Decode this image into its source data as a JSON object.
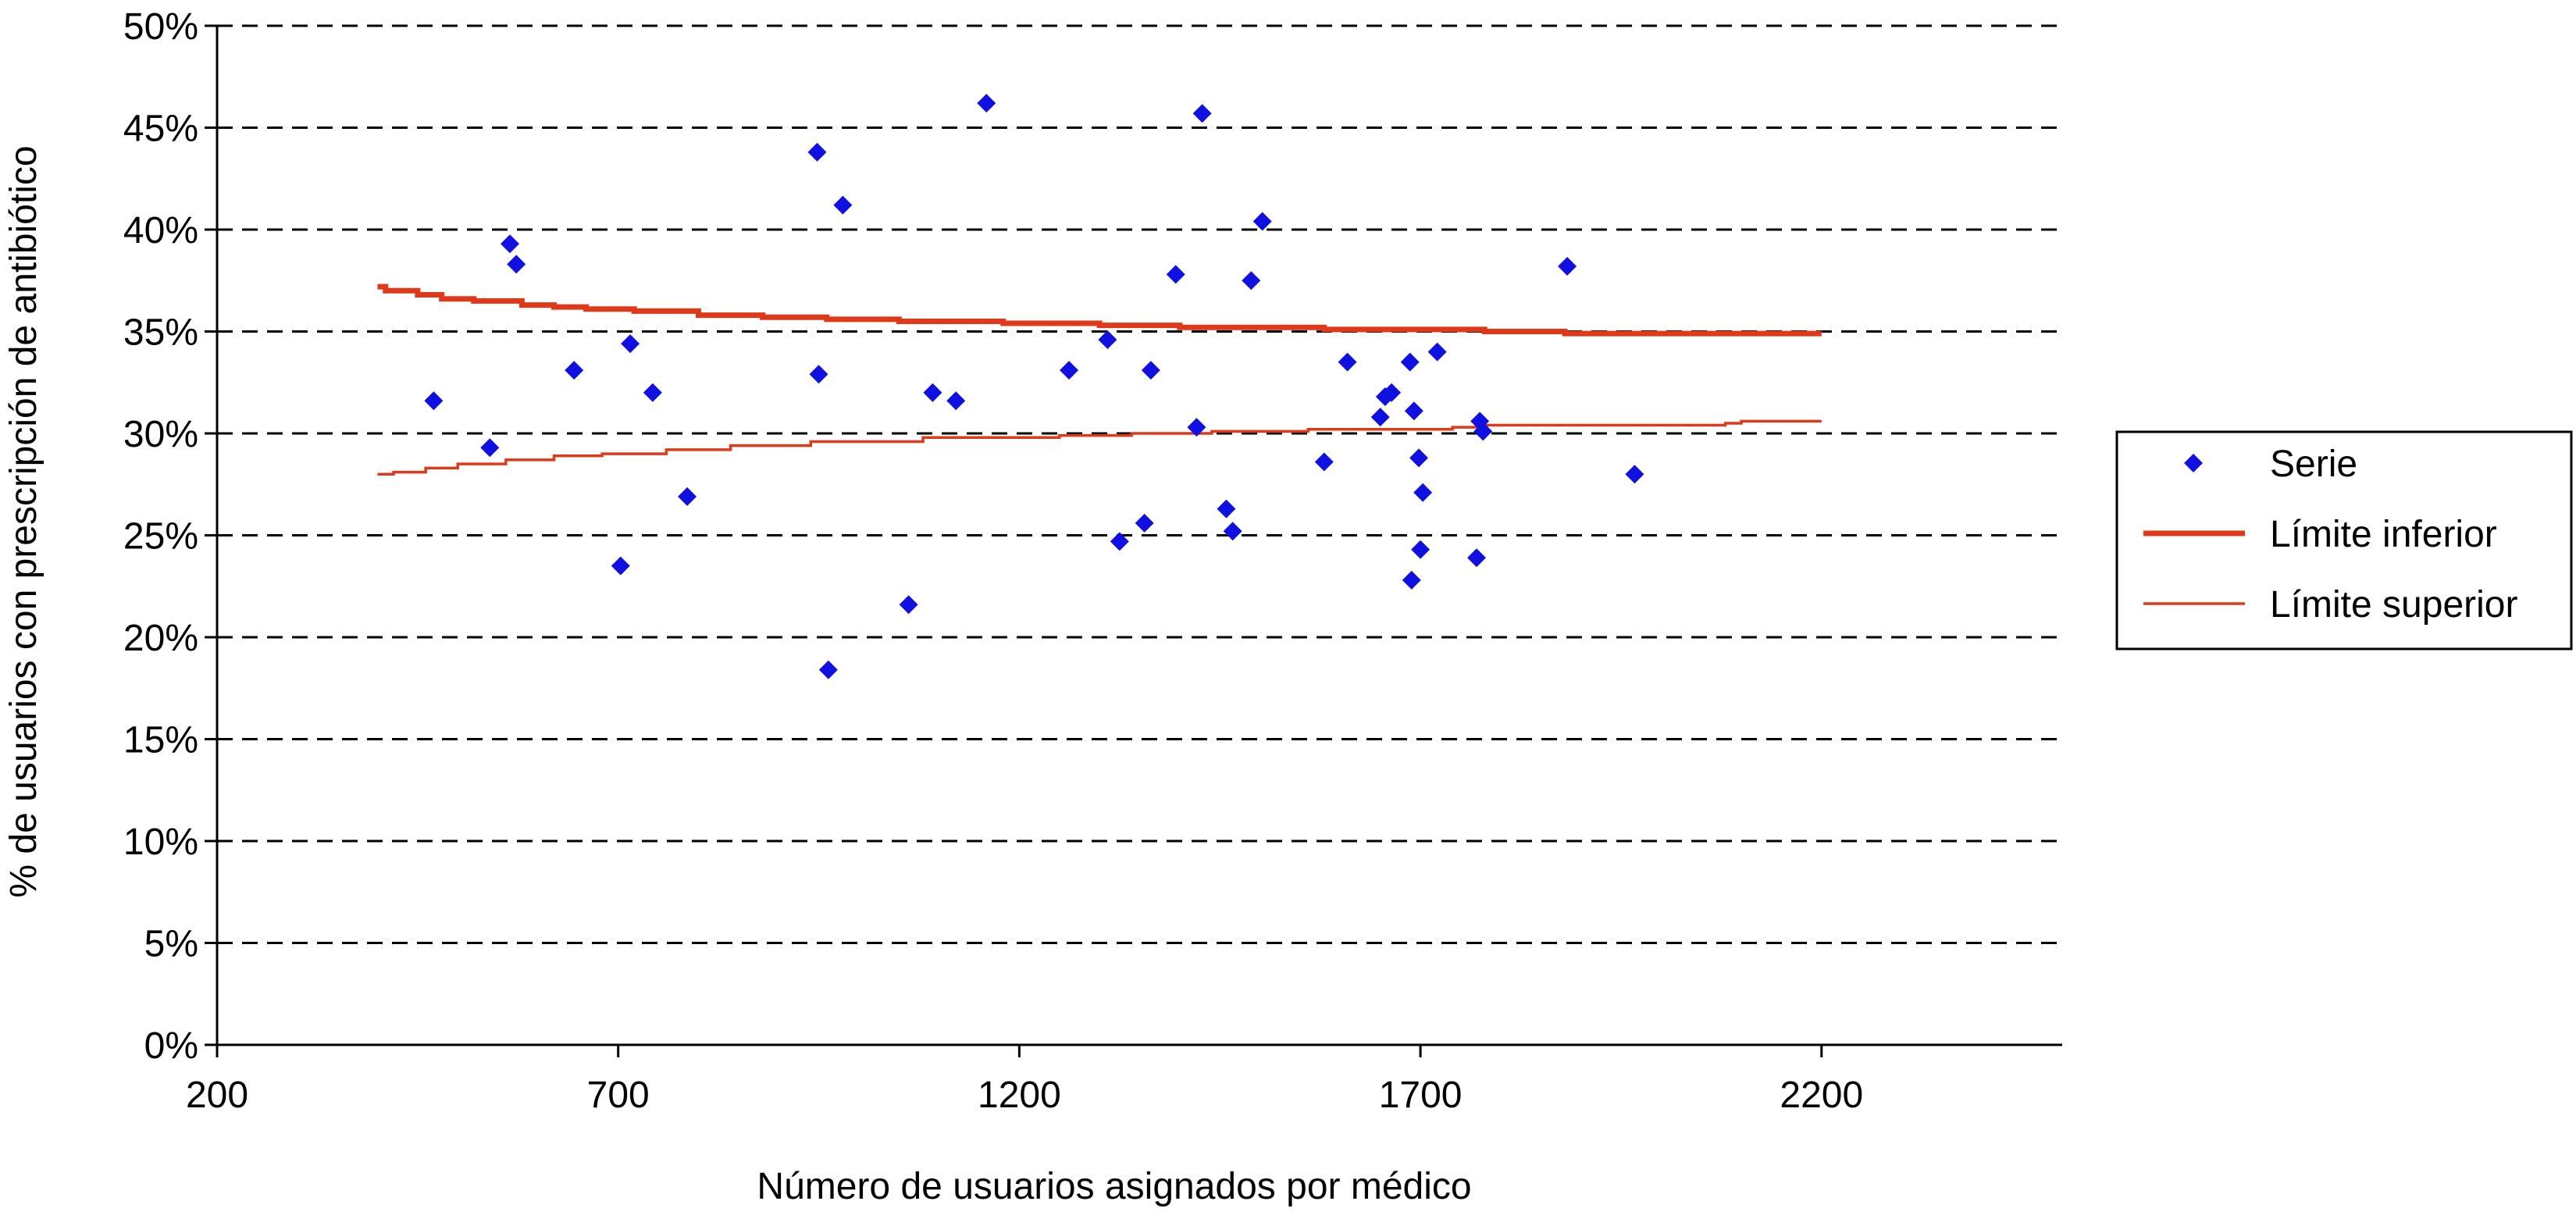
{
  "chart_data": {
    "type": "scatter",
    "title": "",
    "xlabel": "Número de usuarios asignados por médico",
    "ylabel": "% de usuarios con prescripción de antibiótico",
    "xlim": [
      200,
      2500
    ],
    "ylim": [
      0,
      0.5
    ],
    "x_ticks": [
      200,
      700,
      1200,
      1700,
      2200
    ],
    "x_tick_labels": [
      "200",
      "700",
      "1200",
      "1700",
      "2200"
    ],
    "y_ticks": [
      0,
      0.05,
      0.1,
      0.15,
      0.2,
      0.25,
      0.3,
      0.35,
      0.4,
      0.45,
      0.5
    ],
    "y_tick_labels": [
      "0%",
      "5%",
      "10%",
      "15%",
      "20%",
      "25%",
      "30%",
      "35%",
      "40%",
      "45%",
      "50%"
    ],
    "grid": "horizontal dashed",
    "legend_position": "right",
    "series": [
      {
        "name": "Serie",
        "kind": "points",
        "marker": "diamond",
        "color": "#1010e0",
        "points": [
          [
            470,
            0.316
          ],
          [
            540,
            0.293
          ],
          [
            565,
            0.393
          ],
          [
            573,
            0.383
          ],
          [
            645,
            0.331
          ],
          [
            703,
            0.235
          ],
          [
            715,
            0.344
          ],
          [
            743,
            0.32
          ],
          [
            786,
            0.269
          ],
          [
            948,
            0.438
          ],
          [
            950,
            0.329
          ],
          [
            962,
            0.184
          ],
          [
            980,
            0.412
          ],
          [
            1062,
            0.216
          ],
          [
            1092,
            0.32
          ],
          [
            1121,
            0.316
          ],
          [
            1159,
            0.462
          ],
          [
            1262,
            0.331
          ],
          [
            1310,
            0.346
          ],
          [
            1325,
            0.247
          ],
          [
            1356,
            0.256
          ],
          [
            1364,
            0.331
          ],
          [
            1395,
            0.378
          ],
          [
            1421,
            0.303
          ],
          [
            1428,
            0.457
          ],
          [
            1458,
            0.263
          ],
          [
            1466,
            0.252
          ],
          [
            1489,
            0.375
          ],
          [
            1503,
            0.404
          ],
          [
            1580,
            0.286
          ],
          [
            1609,
            0.335
          ],
          [
            1650,
            0.308
          ],
          [
            1656,
            0.318
          ],
          [
            1664,
            0.32
          ],
          [
            1687,
            0.335
          ],
          [
            1689,
            0.228
          ],
          [
            1692,
            0.311
          ],
          [
            1698,
            0.288
          ],
          [
            1700,
            0.243
          ],
          [
            1703,
            0.271
          ],
          [
            1721,
            0.34
          ],
          [
            1770,
            0.239
          ],
          [
            1774,
            0.306
          ],
          [
            1778,
            0.301
          ],
          [
            1883,
            0.382
          ],
          [
            1967,
            0.28
          ]
        ]
      },
      {
        "name": "Límite inferior",
        "kind": "step",
        "color": "#e0391a",
        "points": [
          [
            400,
            0.372
          ],
          [
            410,
            0.37
          ],
          [
            450,
            0.368
          ],
          [
            480,
            0.366
          ],
          [
            520,
            0.365
          ],
          [
            580,
            0.363
          ],
          [
            620,
            0.362
          ],
          [
            660,
            0.361
          ],
          [
            720,
            0.36
          ],
          [
            800,
            0.358
          ],
          [
            880,
            0.357
          ],
          [
            960,
            0.356
          ],
          [
            1050,
            0.355
          ],
          [
            1180,
            0.354
          ],
          [
            1300,
            0.353
          ],
          [
            1400,
            0.352
          ],
          [
            1580,
            0.351
          ],
          [
            1780,
            0.35
          ],
          [
            1880,
            0.349
          ],
          [
            2200,
            0.349
          ]
        ]
      },
      {
        "name": "Límite superior",
        "kind": "step",
        "color": "#e0391a",
        "points": [
          [
            400,
            0.28
          ],
          [
            420,
            0.281
          ],
          [
            460,
            0.283
          ],
          [
            500,
            0.285
          ],
          [
            560,
            0.287
          ],
          [
            620,
            0.289
          ],
          [
            680,
            0.29
          ],
          [
            760,
            0.292
          ],
          [
            840,
            0.294
          ],
          [
            940,
            0.296
          ],
          [
            1080,
            0.298
          ],
          [
            1250,
            0.299
          ],
          [
            1340,
            0.3
          ],
          [
            1440,
            0.301
          ],
          [
            1560,
            0.302
          ],
          [
            1740,
            0.303
          ],
          [
            1780,
            0.304
          ],
          [
            2080,
            0.305
          ],
          [
            2100,
            0.306
          ],
          [
            2200,
            0.306
          ]
        ]
      }
    ]
  }
}
